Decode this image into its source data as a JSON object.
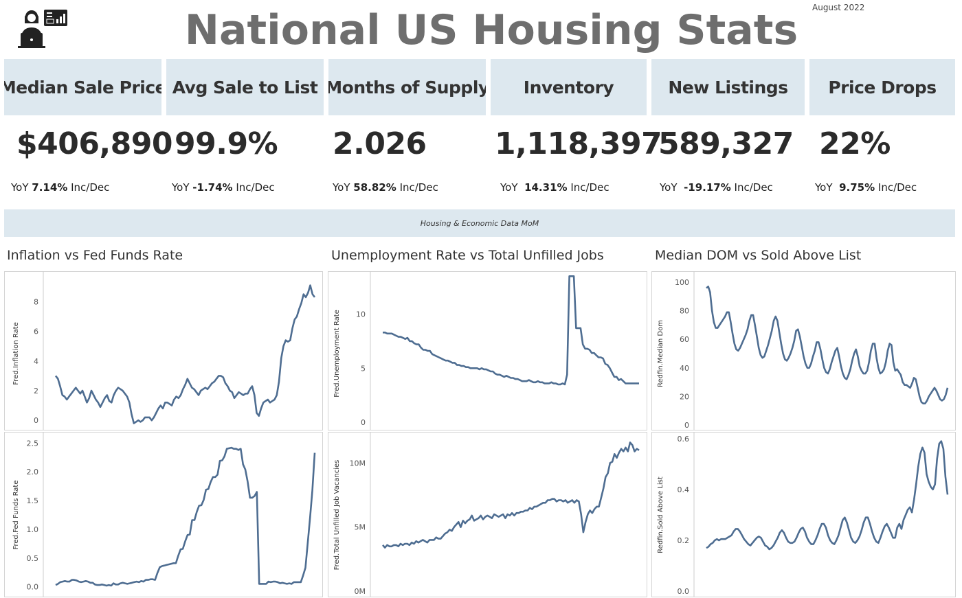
{
  "header": {
    "title": "National US Housing Stats",
    "date": "August 2022",
    "logo_icon": "analyst-dashboard-icon"
  },
  "kpis": [
    {
      "label": "Median Sale Price",
      "value": "$406,890",
      "yoy_prefix": "YoY",
      "yoy_value": "7.14%",
      "yoy_suffix": "Inc/Dec"
    },
    {
      "label": "Avg Sale to List",
      "value": "99.9%",
      "yoy_prefix": "YoY",
      "yoy_value": "-1.74%",
      "yoy_suffix": "Inc/Dec"
    },
    {
      "label": "Months of Supply",
      "value": "2.026",
      "yoy_prefix": "YoY",
      "yoy_value": "58.82%",
      "yoy_suffix": "Inc/Dec"
    },
    {
      "label": "Inventory",
      "value": "1,118,397",
      "yoy_prefix": "YoY",
      "yoy_value": "14.31%",
      "yoy_suffix": "Inc/Dec"
    },
    {
      "label": "New Listings",
      "value": "589,327",
      "yoy_prefix": "YoY",
      "yoy_value": "-19.17%",
      "yoy_suffix": "Inc/Dec"
    },
    {
      "label": "Price Drops",
      "value": "22%",
      "yoy_prefix": "YoY",
      "yoy_value": "9.75%",
      "yoy_suffix": "Inc/Dec"
    }
  ],
  "banner": {
    "text": "Housing & Economic Data MoM"
  },
  "colors": {
    "line": "#4e6d91",
    "panel_bg": "#dde8ef",
    "title_gray": "#6e6e6e"
  },
  "chart_titles": [
    "Inflation vs Fed Funds Rate",
    "Unemployment Rate vs Total Unfilled Jobs",
    "Median DOM vs Sold Above List"
  ],
  "chart_data": [
    {
      "type": "line",
      "title": "Inflation vs Fed Funds Rate",
      "xlabel": "",
      "ylabel": "Fred.Inflation Rate",
      "ylim": [
        -0.5,
        9.5
      ],
      "yticks": [
        "0",
        "2",
        "4",
        "6",
        "8"
      ],
      "ytick_values": [
        0,
        2,
        4,
        6,
        8
      ],
      "x_index": true,
      "grid": false,
      "values": [
        3.0,
        2.8,
        2.3,
        1.7,
        1.6,
        1.4,
        1.6,
        1.8,
        2.0,
        2.2,
        2.0,
        1.8,
        2.0,
        1.6,
        1.2,
        1.5,
        2.0,
        1.7,
        1.4,
        1.2,
        0.9,
        1.2,
        1.5,
        1.7,
        1.3,
        1.2,
        1.7,
        2.0,
        2.2,
        2.1,
        2.0,
        1.8,
        1.6,
        1.2,
        0.4,
        -0.2,
        -0.1,
        0.0,
        -0.1,
        0.0,
        0.2,
        0.2,
        0.2,
        0.0,
        0.2,
        0.5,
        0.8,
        1.0,
        0.8,
        1.2,
        1.2,
        1.1,
        1.0,
        1.4,
        1.6,
        1.5,
        1.7,
        2.1,
        2.4,
        2.8,
        2.5,
        2.2,
        2.1,
        1.9,
        1.7,
        2.0,
        2.1,
        2.2,
        2.1,
        2.3,
        2.5,
        2.6,
        2.8,
        3.0,
        3.0,
        2.9,
        2.5,
        2.3,
        2.0,
        1.9,
        1.5,
        1.7,
        1.9,
        1.8,
        1.7,
        1.8,
        1.8,
        2.1,
        2.3,
        1.7,
        0.5,
        0.3,
        0.8,
        1.2,
        1.3,
        1.4,
        1.2,
        1.3,
        1.4,
        1.7,
        2.6,
        4.2,
        5.0,
        5.4,
        5.3,
        5.4,
        6.2,
        6.8,
        7.0,
        7.5,
        7.9,
        8.5,
        8.3,
        8.6,
        9.1,
        8.5,
        8.3
      ]
    },
    {
      "type": "line",
      "title": "",
      "xlabel": "",
      "ylabel": "Fred.Fed Funds Rate",
      "ylim": [
        -0.1,
        2.6
      ],
      "yticks": [
        "0.0",
        "0.5",
        "1.0",
        "1.5",
        "2.0",
        "2.5"
      ],
      "ytick_values": [
        0,
        0.5,
        1.0,
        1.5,
        2.0,
        2.5
      ],
      "x_index": true,
      "grid": false,
      "values": [
        0.03,
        0.05,
        0.08,
        0.09,
        0.1,
        0.09,
        0.09,
        0.12,
        0.12,
        0.11,
        0.09,
        0.08,
        0.09,
        0.1,
        0.09,
        0.07,
        0.07,
        0.04,
        0.03,
        0.03,
        0.04,
        0.03,
        0.02,
        0.03,
        0.02,
        0.06,
        0.04,
        0.04,
        0.06,
        0.07,
        0.06,
        0.05,
        0.06,
        0.07,
        0.08,
        0.09,
        0.08,
        0.1,
        0.09,
        0.12,
        0.12,
        0.13,
        0.13,
        0.12,
        0.24,
        0.34,
        0.36,
        0.37,
        0.38,
        0.39,
        0.4,
        0.41,
        0.41,
        0.54,
        0.65,
        0.66,
        0.79,
        0.9,
        0.91,
        1.16,
        1.16,
        1.3,
        1.41,
        1.42,
        1.51,
        1.69,
        1.7,
        1.82,
        1.91,
        1.91,
        1.95,
        2.19,
        2.2,
        2.27,
        2.4,
        2.41,
        2.42,
        2.4,
        2.4,
        2.38,
        2.4,
        2.13,
        2.04,
        1.83,
        1.55,
        1.55,
        1.58,
        1.65,
        0.05,
        0.05,
        0.05,
        0.05,
        0.09,
        0.08,
        0.09,
        0.09,
        0.08,
        0.06,
        0.07,
        0.06,
        0.05,
        0.06,
        0.05,
        0.08,
        0.08,
        0.08,
        0.08,
        0.2,
        0.33,
        0.77,
        1.21,
        1.68,
        2.33
      ]
    },
    {
      "type": "line",
      "title": "Unemployment Rate vs Total Unfilled Jobs",
      "xlabel": "",
      "ylabel": "Fred.Unemployment Rate",
      "ylim": [
        -0.5,
        13.2
      ],
      "yticks": [
        "0",
        "5",
        "10"
      ],
      "ytick_values": [
        0,
        5,
        10
      ],
      "x_index": true,
      "grid": false,
      "values": [
        8.3,
        8.3,
        8.2,
        8.2,
        8.2,
        8.1,
        8.0,
        7.9,
        7.9,
        7.8,
        7.7,
        7.8,
        7.5,
        7.5,
        7.3,
        7.2,
        7.2,
        6.9,
        6.7,
        6.7,
        6.6,
        6.6,
        6.3,
        6.2,
        6.1,
        6.0,
        5.9,
        5.8,
        5.7,
        5.7,
        5.6,
        5.5,
        5.5,
        5.3,
        5.3,
        5.2,
        5.2,
        5.1,
        5.1,
        5.0,
        5.0,
        5.0,
        5.0,
        4.9,
        5.0,
        4.9,
        4.9,
        4.8,
        4.7,
        4.7,
        4.5,
        4.4,
        4.4,
        4.3,
        4.2,
        4.3,
        4.2,
        4.1,
        4.1,
        4.0,
        4.0,
        3.9,
        3.8,
        3.8,
        3.8,
        3.9,
        3.8,
        3.7,
        3.7,
        3.8,
        3.7,
        3.7,
        3.6,
        3.6,
        3.6,
        3.7,
        3.6,
        3.6,
        3.5,
        3.5,
        3.6,
        3.5,
        4.4,
        13.5,
        13.5,
        13.5,
        8.7,
        8.7,
        8.7,
        7.2,
        6.8,
        6.8,
        6.7,
        6.4,
        6.4,
        6.2,
        6.0,
        6.0,
        5.9,
        5.4,
        5.3,
        5.0,
        4.6,
        4.2,
        4.2,
        3.9,
        4.0,
        3.8,
        3.6,
        3.6,
        3.6,
        3.6,
        3.6,
        3.6,
        3.6
      ]
    },
    {
      "type": "line",
      "title": "",
      "xlabel": "",
      "ylabel": "Fred.Total Unfilled Job Vacancies",
      "ylim": [
        -0.1,
        12.0
      ],
      "yticks": [
        "0M",
        "5M",
        "10M"
      ],
      "ytick_values": [
        0,
        5,
        10
      ],
      "x_index": true,
      "grid": false,
      "value_unit": "millions",
      "values": [
        3.6,
        3.4,
        3.6,
        3.5,
        3.5,
        3.6,
        3.6,
        3.5,
        3.7,
        3.6,
        3.7,
        3.7,
        3.6,
        3.8,
        3.7,
        3.9,
        3.8,
        3.9,
        4.0,
        3.9,
        3.8,
        4.0,
        4.0,
        4.0,
        4.2,
        4.1,
        4.1,
        4.3,
        4.5,
        4.6,
        4.8,
        4.7,
        5.0,
        5.2,
        5.4,
        5.0,
        5.5,
        5.3,
        5.5,
        5.6,
        5.9,
        5.5,
        5.6,
        5.7,
        5.9,
        5.6,
        5.8,
        5.9,
        5.8,
        5.7,
        6.0,
        5.9,
        5.8,
        5.9,
        6.0,
        5.7,
        6.0,
        5.9,
        6.1,
        5.9,
        6.1,
        6.1,
        6.2,
        6.2,
        6.3,
        6.3,
        6.5,
        6.4,
        6.6,
        6.6,
        6.7,
        6.8,
        6.9,
        6.9,
        7.1,
        7.1,
        7.2,
        7.2,
        7.0,
        7.1,
        7.1,
        7.0,
        7.1,
        6.9,
        7.0,
        7.1,
        6.9,
        7.1,
        7.0,
        6.0,
        4.6,
        5.4,
        6.0,
        6.3,
        6.1,
        6.4,
        6.6,
        6.6,
        7.3,
        8.0,
        8.9,
        9.2,
        10.0,
        10.1,
        10.7,
        10.4,
        10.8,
        11.1,
        10.9,
        11.2,
        10.9,
        11.6,
        11.4,
        10.9,
        11.1,
        11.0
      ]
    },
    {
      "type": "line",
      "title": "Median DOM vs Sold Above List",
      "xlabel": "",
      "ylabel": "Redfin.Median Dom",
      "ylim": [
        -2,
        102
      ],
      "yticks": [
        "0",
        "20",
        "40",
        "60",
        "80",
        "100"
      ],
      "ytick_values": [
        0,
        20,
        40,
        60,
        80,
        100
      ],
      "x_index": true,
      "grid": false,
      "values": [
        96,
        97,
        93,
        80,
        72,
        68,
        68,
        70,
        72,
        74,
        76,
        79,
        79,
        72,
        64,
        57,
        53,
        52,
        54,
        57,
        60,
        63,
        67,
        73,
        77,
        77,
        70,
        62,
        54,
        49,
        47,
        48,
        52,
        56,
        61,
        66,
        73,
        76,
        73,
        65,
        57,
        50,
        46,
        45,
        47,
        50,
        54,
        59,
        66,
        67,
        62,
        55,
        48,
        43,
        40,
        40,
        43,
        48,
        52,
        58,
        58,
        53,
        46,
        40,
        37,
        36,
        39,
        44,
        48,
        52,
        54,
        48,
        41,
        36,
        33,
        32,
        35,
        39,
        45,
        50,
        53,
        48,
        41,
        38,
        36,
        36,
        38,
        44,
        52,
        57,
        57,
        47,
        40,
        36,
        37,
        39,
        44,
        52,
        57,
        56,
        44,
        38,
        39,
        37,
        35,
        30,
        28,
        28,
        27,
        26,
        29,
        33,
        32,
        26,
        20,
        16,
        15,
        15,
        17,
        20,
        22,
        24,
        26,
        24,
        21,
        18,
        17,
        18,
        21,
        26
      ]
    },
    {
      "type": "line",
      "title": "",
      "xlabel": "",
      "ylabel": "Redfin.Sold Above List",
      "ylim": [
        -0.005,
        0.605
      ],
      "yticks": [
        "0.0",
        "0.2",
        "0.4",
        "0.6"
      ],
      "ytick_values": [
        0,
        0.2,
        0.4,
        0.6
      ],
      "x_index": true,
      "grid": false,
      "values": [
        0.17,
        0.175,
        0.185,
        0.19,
        0.2,
        0.205,
        0.2,
        0.205,
        0.205,
        0.205,
        0.21,
        0.215,
        0.22,
        0.235,
        0.245,
        0.245,
        0.235,
        0.22,
        0.205,
        0.195,
        0.185,
        0.18,
        0.19,
        0.2,
        0.21,
        0.215,
        0.21,
        0.195,
        0.18,
        0.175,
        0.165,
        0.17,
        0.18,
        0.195,
        0.21,
        0.23,
        0.24,
        0.23,
        0.21,
        0.195,
        0.19,
        0.19,
        0.195,
        0.21,
        0.23,
        0.245,
        0.25,
        0.235,
        0.21,
        0.195,
        0.185,
        0.185,
        0.2,
        0.22,
        0.245,
        0.265,
        0.265,
        0.25,
        0.22,
        0.2,
        0.19,
        0.185,
        0.2,
        0.22,
        0.25,
        0.28,
        0.29,
        0.27,
        0.24,
        0.21,
        0.195,
        0.19,
        0.2,
        0.215,
        0.24,
        0.27,
        0.29,
        0.29,
        0.265,
        0.235,
        0.21,
        0.195,
        0.19,
        0.21,
        0.235,
        0.255,
        0.265,
        0.25,
        0.23,
        0.21,
        0.21,
        0.25,
        0.265,
        0.245,
        0.28,
        0.3,
        0.32,
        0.33,
        0.31,
        0.36,
        0.42,
        0.49,
        0.54,
        0.565,
        0.545,
        0.46,
        0.43,
        0.41,
        0.4,
        0.42,
        0.52,
        0.58,
        0.59,
        0.56,
        0.45,
        0.38
      ]
    }
  ]
}
